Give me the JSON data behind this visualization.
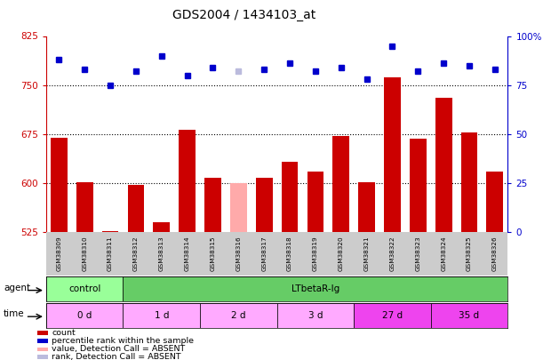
{
  "title": "GDS2004 / 1434103_at",
  "samples": [
    "GSM38309",
    "GSM38310",
    "GSM38311",
    "GSM38312",
    "GSM38313",
    "GSM38314",
    "GSM38315",
    "GSM38316",
    "GSM38317",
    "GSM38318",
    "GSM38319",
    "GSM38320",
    "GSM38321",
    "GSM38322",
    "GSM38323",
    "GSM38324",
    "GSM38325",
    "GSM38326"
  ],
  "bar_values": [
    670,
    602,
    527,
    598,
    540,
    682,
    608,
    600,
    608,
    633,
    618,
    672,
    602,
    762,
    668,
    730,
    678,
    618
  ],
  "bar_absent": [
    false,
    false,
    false,
    false,
    false,
    false,
    false,
    true,
    false,
    false,
    false,
    false,
    false,
    false,
    false,
    false,
    false,
    false
  ],
  "dot_values": [
    88,
    83,
    75,
    82,
    90,
    80,
    84,
    82,
    83,
    86,
    82,
    84,
    78,
    95,
    82,
    86,
    85,
    83
  ],
  "dot_absent": [
    false,
    false,
    false,
    false,
    false,
    false,
    false,
    true,
    false,
    false,
    false,
    false,
    false,
    false,
    false,
    false,
    false,
    false
  ],
  "ylim_left": [
    525,
    825
  ],
  "ylim_right": [
    0,
    100
  ],
  "yticks_left": [
    525,
    600,
    675,
    750,
    825
  ],
  "yticks_right": [
    0,
    25,
    50,
    75,
    100
  ],
  "bar_color": "#cc0000",
  "bar_absent_color": "#ffaaaa",
  "dot_color": "#0000cc",
  "dot_absent_color": "#bbbbdd",
  "agent_groups": [
    {
      "label": "control",
      "start": 0,
      "end": 3,
      "color": "#99ff99"
    },
    {
      "label": "LTbetaR-Ig",
      "start": 3,
      "end": 18,
      "color": "#66cc66"
    }
  ],
  "time_groups": [
    {
      "label": "0 d",
      "start": 0,
      "end": 3,
      "color": "#ffaaff"
    },
    {
      "label": "1 d",
      "start": 3,
      "end": 6,
      "color": "#ffaaff"
    },
    {
      "label": "2 d",
      "start": 6,
      "end": 9,
      "color": "#ffaaff"
    },
    {
      "label": "3 d",
      "start": 9,
      "end": 12,
      "color": "#ffaaff"
    },
    {
      "label": "27 d",
      "start": 12,
      "end": 15,
      "color": "#ee44ee"
    },
    {
      "label": "35 d",
      "start": 15,
      "end": 18,
      "color": "#ee44ee"
    }
  ],
  "hlines": [
    750,
    675,
    600
  ],
  "legend_items": [
    {
      "color": "#cc0000",
      "label": "count"
    },
    {
      "color": "#0000cc",
      "label": "percentile rank within the sample"
    },
    {
      "color": "#ffaaaa",
      "label": "value, Detection Call = ABSENT"
    },
    {
      "color": "#bbbbdd",
      "label": "rank, Detection Call = ABSENT"
    }
  ]
}
